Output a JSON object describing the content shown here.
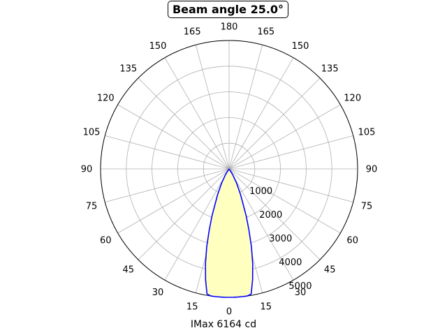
{
  "chart_data": {
    "type": "polar-line",
    "title": "Beam angle 25.0°",
    "xlabel": "IMax 6164 cd",
    "angle_unit": "degrees",
    "angle_zero_location": "bottom",
    "angle_ticks": [
      "180",
      "165",
      "150",
      "135",
      "120",
      "105",
      "90",
      "75",
      "60",
      "45",
      "30",
      "15",
      "0",
      "15",
      "30",
      "45",
      "60",
      "75",
      "90",
      "105",
      "120",
      "135",
      "150",
      "165"
    ],
    "angle_tick_values": [
      180,
      165,
      150,
      135,
      120,
      105,
      90,
      75,
      60,
      45,
      30,
      15,
      0,
      15,
      30,
      45,
      60,
      75,
      90,
      105,
      120,
      135,
      150,
      165
    ],
    "radial_ticks": [
      "1000",
      "2000",
      "3000",
      "4000",
      "5000"
    ],
    "radial_tick_values": [
      1000,
      2000,
      3000,
      4000,
      5000
    ],
    "rlim": [
      0,
      5000
    ],
    "grid": true,
    "line_color": "#0000ff",
    "fill_color": "#ffffc0",
    "series": [
      {
        "angles": [
          0,
          2,
          4,
          6,
          8,
          10,
          12,
          14,
          16,
          18,
          20,
          24,
          28,
          32,
          36
        ],
        "values": [
          6164,
          6100,
          5950,
          5700,
          5350,
          4950,
          4400,
          3800,
          3150,
          2500,
          1950,
          1100,
          600,
          250,
          0
        ]
      }
    ]
  }
}
